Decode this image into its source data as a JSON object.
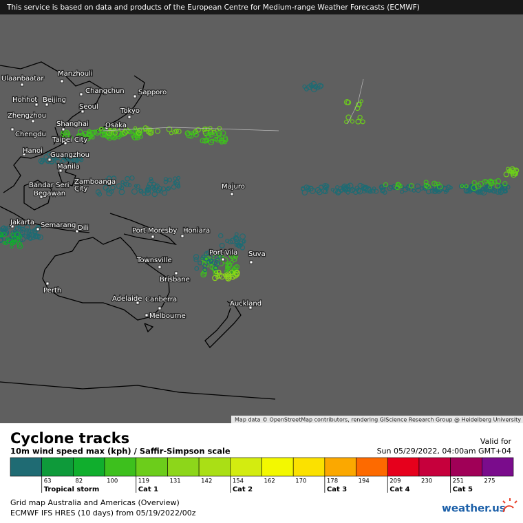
{
  "notice": "This service is based on data and products of the European Centre for Medium-range Weather Forecasts (ECMWF)",
  "attribution": "Map data © OpenStreetMap contributors, rendering GIScience Research Group @ Heidelberg University",
  "cities": [
    "Ulaanbaatar",
    "Manzhouli",
    "Changchun",
    "Hohhot",
    "Beijing",
    "Sapporo",
    "Seoul",
    "Zhengzhou",
    "Tokyo",
    "Shanghai",
    "Osaka",
    "Chengdu",
    "Taipei City",
    "Hanoi",
    "Guangzhou",
    "Manila",
    "Zamboanga",
    "City",
    "Bandar Seri",
    "Begawan",
    "Majuro",
    "Jakarta",
    "Semarang",
    "Dili",
    "Port Moresby",
    "Honiara",
    "Port Vila",
    "Suva",
    "Townsville",
    "Brisbane",
    "Perth",
    "Adelaide",
    "Canberra",
    "Auckland",
    "Melbourne"
  ],
  "title": "Cyclone tracks",
  "subtitle": "10m wind speed max (kph) / Saffir-Simpson scale",
  "valid_label": "Valid for",
  "valid_time": "Sun 05/29/2022, 04:00am GMT+04",
  "scale": {
    "colors": [
      "#1f6b73",
      "#0e9a3a",
      "#10ae2d",
      "#3dc01d",
      "#6ccd1b",
      "#8dd61a",
      "#aadf15",
      "#d3ec10",
      "#f3f800",
      "#fbe100",
      "#fba800",
      "#fd6a00",
      "#e6001c",
      "#c6003c",
      "#a00057",
      "#7a0c8c"
    ],
    "thresholds": [
      63,
      82,
      100,
      119,
      131,
      142,
      154,
      162,
      170,
      178,
      194,
      209,
      230,
      251,
      275
    ],
    "categories": [
      "Tropical storm",
      "Cat 1",
      "Cat 2",
      "Cat 3",
      "Cat 4",
      "Cat 5"
    ]
  },
  "footer": [
    "Grid map Australia and Americas (Overview)",
    "ECMWF IFS HRES (10 days) from 05/19/2022/00z"
  ],
  "logo": "weather.us"
}
